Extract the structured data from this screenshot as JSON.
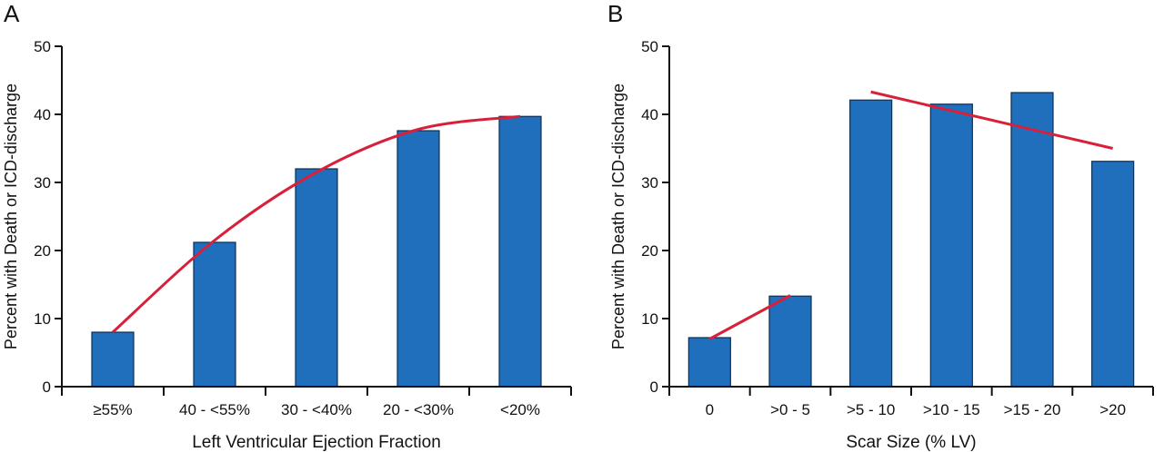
{
  "colors": {
    "bar": "#1f6fbd",
    "bar_edge": "#0d2f52",
    "trend": "#d8203a",
    "axis": "#111111"
  },
  "chart_data": [
    {
      "panel_label": "A",
      "type": "bar",
      "xlabel": "Left Ventricular Ejection Fraction",
      "ylabel": "Percent with Death or ICD-discharge",
      "ylim": [
        0,
        50
      ],
      "yticks": [
        0,
        10,
        20,
        30,
        40,
        50
      ],
      "categories": [
        "≥55%",
        "40 - <55%",
        "30 - <40%",
        "20 - <30%",
        "<20%"
      ],
      "values": [
        8,
        21.2,
        32,
        37.6,
        39.7
      ],
      "grid": false,
      "trend_lines": [
        {
          "kind": "smooth curve",
          "from_category": 0,
          "to_category": 4,
          "points": [
            8,
            21.5,
            31.5,
            37.8,
            39.7
          ]
        }
      ]
    },
    {
      "panel_label": "B",
      "type": "bar",
      "xlabel": "Scar Size (% LV)",
      "ylabel": "Percent with Death or ICD-discharge",
      "ylim": [
        0,
        50
      ],
      "yticks": [
        0,
        10,
        20,
        30,
        40,
        50
      ],
      "categories": [
        "0",
        ">0 - 5",
        ">5 - 10",
        ">10 - 15",
        ">15 - 20",
        ">20"
      ],
      "values": [
        7.2,
        13.3,
        42.1,
        41.5,
        43.2,
        33.1
      ],
      "grid": false,
      "trend_lines": [
        {
          "kind": "straight",
          "from_category": 0,
          "to_category": 1,
          "y_start": 7.0,
          "y_end": 13.4
        },
        {
          "kind": "straight",
          "from_category": 2,
          "to_category": 5,
          "y_start": 43.3,
          "y_end": 35.0
        }
      ]
    }
  ]
}
